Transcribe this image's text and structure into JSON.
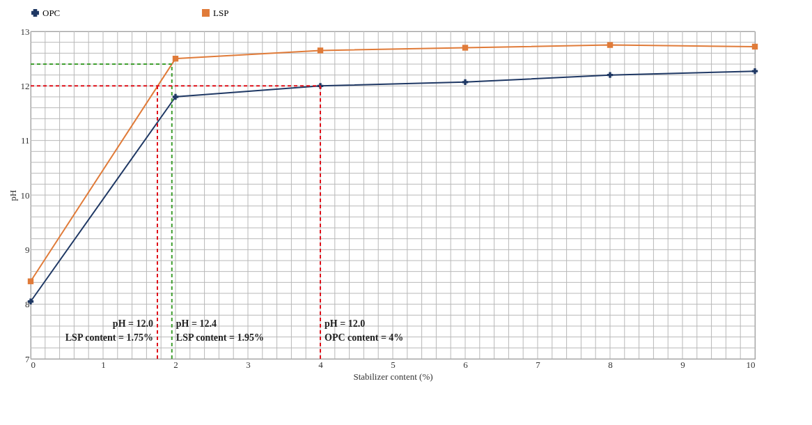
{
  "chart_data": {
    "type": "line",
    "xlabel": "Stabilizer content (%)",
    "ylabel": "pH",
    "x": [
      0,
      2,
      4,
      6,
      8,
      10
    ],
    "series": [
      {
        "name": "OPC",
        "color": "#1f3864",
        "marker": "cross",
        "values": [
          8.05,
          11.8,
          12.0,
          12.07,
          12.2,
          12.27
        ]
      },
      {
        "name": "LSP",
        "color": "#e07b39",
        "marker": "square",
        "values": [
          8.42,
          12.5,
          12.65,
          12.7,
          12.75,
          12.72
        ]
      }
    ],
    "xlim": [
      0,
      10
    ],
    "ylim": [
      7,
      13
    ],
    "xticks": [
      0,
      {
        "value": 0.2,
        "label": null
      },
      {
        "value": 0.4,
        "label": null
      },
      {
        "value": 0.6,
        "label": null
      },
      {
        "value": 0.8,
        "label": null
      },
      1,
      {
        "value": 1.2,
        "label": null
      },
      {
        "value": 1.4,
        "label": null
      },
      {
        "value": 1.6,
        "label": null
      },
      {
        "value": 1.8,
        "label": null
      },
      2,
      {
        "value": 2.2,
        "label": null
      },
      {
        "value": 2.4,
        "label": null
      },
      {
        "value": 2.6,
        "label": null
      },
      {
        "value": 2.8,
        "label": null
      },
      3,
      {
        "value": 3.2,
        "label": null
      },
      {
        "value": 3.4,
        "label": null
      },
      {
        "value": 3.6,
        "label": null
      },
      {
        "value": 3.8,
        "label": null
      },
      4,
      {
        "value": 4.2,
        "label": null
      },
      {
        "value": 4.4,
        "label": null
      },
      {
        "value": 4.6,
        "label": null
      },
      {
        "value": 4.8,
        "label": null
      },
      5,
      {
        "value": 5.2,
        "label": null
      },
      {
        "value": 5.4,
        "label": null
      },
      {
        "value": 5.6,
        "label": null
      },
      {
        "value": 5.8,
        "label": null
      },
      6,
      {
        "value": 6.2,
        "label": null
      },
      {
        "value": 6.4,
        "label": null
      },
      {
        "value": 6.6,
        "label": null
      },
      {
        "value": 6.8,
        "label": null
      },
      7,
      {
        "value": 7.2,
        "label": null
      },
      {
        "value": 7.4,
        "label": null
      },
      {
        "value": 7.6,
        "label": null
      },
      {
        "value": 7.8,
        "label": null
      },
      8,
      {
        "value": 8.2,
        "label": null
      },
      {
        "value": 8.4,
        "label": null
      },
      {
        "value": 8.6,
        "label": null
      },
      {
        "value": 8.8,
        "label": null
      },
      9,
      {
        "value": 9.2,
        "label": null
      },
      {
        "value": 9.4,
        "label": null
      },
      {
        "value": 9.6,
        "label": null
      },
      {
        "value": 9.8,
        "label": null
      },
      10
    ],
    "yticks": [
      7,
      {
        "value": 7.2,
        "label": null
      },
      {
        "value": 7.4,
        "label": null
      },
      {
        "value": 7.6,
        "label": null
      },
      {
        "value": 7.8,
        "label": null
      },
      8,
      {
        "value": 8.2,
        "label": null
      },
      {
        "value": 8.4,
        "label": null
      },
      {
        "value": 8.6,
        "label": null
      },
      {
        "value": 8.8,
        "label": null
      },
      9,
      {
        "value": 9.2,
        "label": null
      },
      {
        "value": 9.4,
        "label": null
      },
      {
        "value": 9.6,
        "label": null
      },
      {
        "value": 9.8,
        "label": null
      },
      10,
      {
        "value": 10.2,
        "label": null
      },
      {
        "value": 10.4,
        "label": null
      },
      {
        "value": 10.6,
        "label": null
      },
      {
        "value": 10.8,
        "label": null
      },
      11,
      {
        "value": 11.2,
        "label": null
      },
      {
        "value": 11.4,
        "label": null
      },
      {
        "value": 11.6,
        "label": null
      },
      {
        "value": 11.8,
        "label": null
      },
      12,
      {
        "value": 12.2,
        "label": null
      },
      {
        "value": 12.4,
        "label": null
      },
      {
        "value": 12.6,
        "label": null
      },
      {
        "value": 12.8,
        "label": null
      },
      13
    ],
    "grid": true,
    "legend": "top",
    "line_style": "solid",
    "ref_lines": [
      {
        "axis": "x",
        "value": 1.75,
        "color": "#e0101a",
        "line_style": "dashed",
        "label": "pH = 12.0\nLSP content = 1.75%"
      },
      {
        "axis": "x",
        "value": 1.95,
        "color": "#3f9f2f",
        "line_style": "dashed",
        "label": "pH = 12.4\nLSP content = 1.95%"
      },
      {
        "axis": "x",
        "value": 4,
        "color": "#e0101a",
        "line_style": "dashed",
        "label": "pH = 12.0\nOPC content = 4%"
      },
      {
        "axis": "y",
        "value": 12.0,
        "color": "#e0101a",
        "line_style": "dashed"
      },
      {
        "axis": "y",
        "value": 12.4,
        "color": "#3f9f2f",
        "line_style": "dashed"
      }
    ]
  }
}
